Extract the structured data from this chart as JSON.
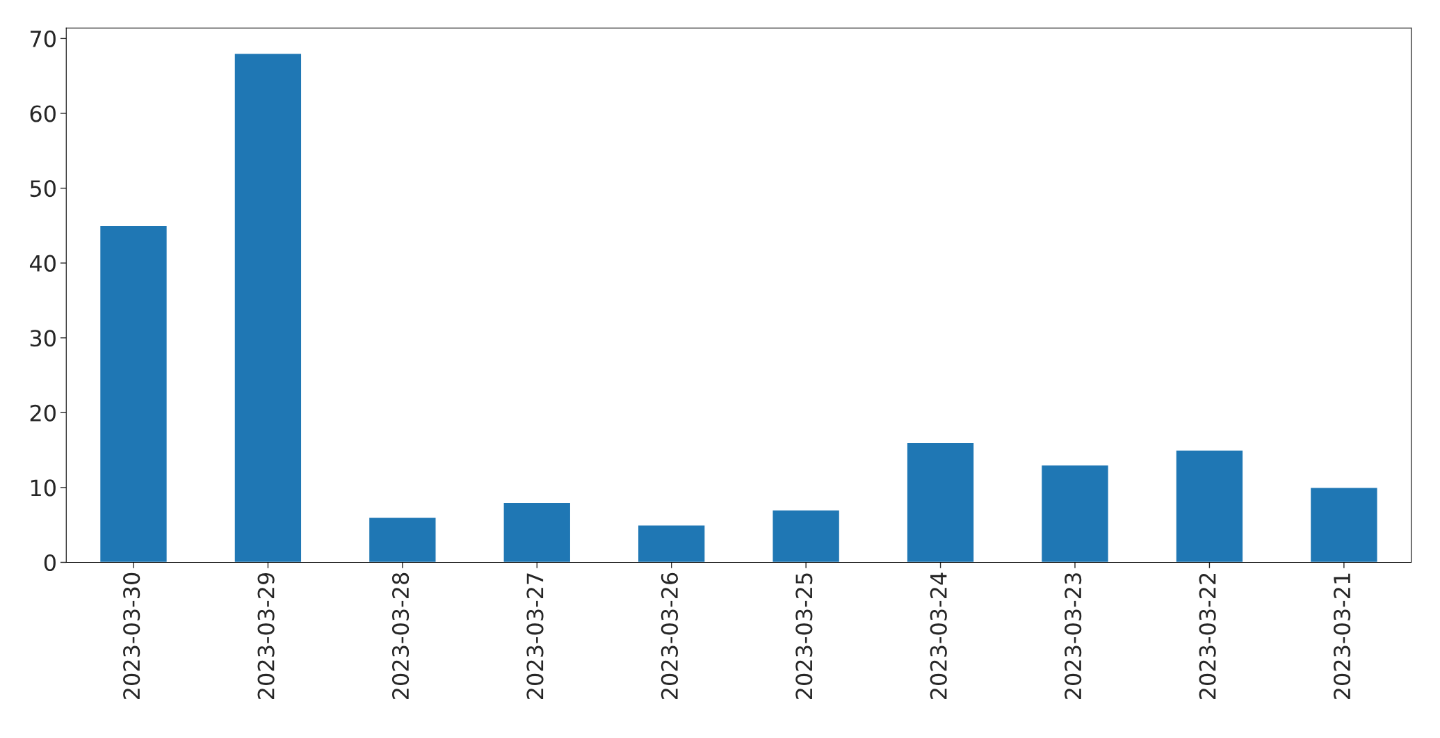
{
  "chart_data": {
    "type": "bar",
    "categories": [
      "2023-03-30",
      "2023-03-29",
      "2023-03-28",
      "2023-03-27",
      "2023-03-26",
      "2023-03-25",
      "2023-03-24",
      "2023-03-23",
      "2023-03-22",
      "2023-03-21"
    ],
    "values": [
      45,
      68,
      6,
      8,
      5,
      7,
      16,
      13,
      15,
      10
    ],
    "color": "#1f77b4",
    "ylim": [
      0,
      71.4
    ],
    "yticks": [
      0,
      10,
      20,
      30,
      40,
      50,
      60,
      70
    ],
    "grid": false,
    "legend": false
  }
}
